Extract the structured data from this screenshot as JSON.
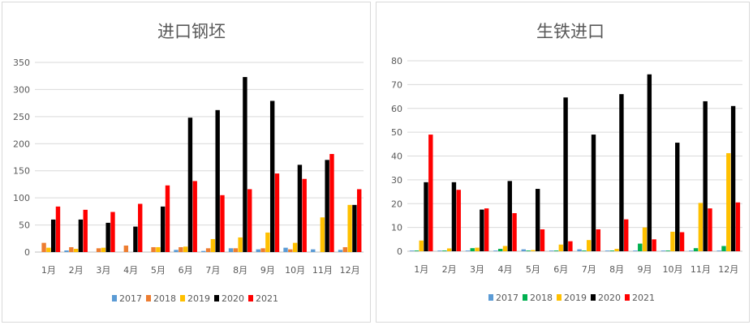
{
  "chart_data": [
    {
      "type": "bar",
      "title": "进口钢坯",
      "categories": [
        "1月",
        "2月",
        "3月",
        "4月",
        "5月",
        "6月",
        "7月",
        "8月",
        "9月",
        "10月",
        "11月",
        "12月"
      ],
      "ylim": [
        0,
        350
      ],
      "yticks": [
        "0",
        "50",
        "100",
        "150",
        "200",
        "250",
        "300",
        "350"
      ],
      "grid": true,
      "legend_position": "bottom",
      "series": [
        {
          "name": "2017",
          "color": "#5b9bd5",
          "values": [
            0,
            3,
            0,
            0,
            0,
            4,
            2,
            7,
            5,
            8,
            5,
            4
          ]
        },
        {
          "name": "2018",
          "color": "#ed7d31",
          "values": [
            17,
            9,
            7,
            12,
            9,
            9,
            7,
            7,
            7,
            5,
            0,
            9
          ]
        },
        {
          "name": "2019",
          "color": "#ffc000",
          "values": [
            8,
            6,
            8,
            0,
            9,
            10,
            24,
            27,
            36,
            17,
            64,
            87
          ]
        },
        {
          "name": "2020",
          "color": "#000000",
          "values": [
            60,
            60,
            54,
            47,
            84,
            248,
            262,
            323,
            279,
            161,
            170,
            87
          ]
        },
        {
          "name": "2021",
          "color": "#ff0000",
          "values": [
            84,
            78,
            74,
            89,
            123,
            131,
            105,
            116,
            145,
            135,
            181,
            116
          ]
        }
      ]
    },
    {
      "type": "bar",
      "title": "生铁进口",
      "categories": [
        "1月",
        "2月",
        "3月",
        "4月",
        "5月",
        "6月",
        "7月",
        "8月",
        "9月",
        "10月",
        "11月",
        "12月"
      ],
      "ylim": [
        0,
        80
      ],
      "yticks": [
        "0",
        "10",
        "20",
        "30",
        "40",
        "50",
        "60",
        "70",
        "80"
      ],
      "grid": true,
      "legend_position": "bottom",
      "series": [
        {
          "name": "2017",
          "color": "#5b9bd5",
          "values": [
            0.3,
            0.3,
            0.3,
            0.3,
            0.8,
            0.3,
            0.8,
            0.3,
            0.3,
            0.3,
            0.3,
            0.3
          ]
        },
        {
          "name": "2018",
          "color": "#00b050",
          "values": [
            0.3,
            0.3,
            1.3,
            1,
            0.3,
            0.3,
            0.3,
            0.3,
            3.2,
            0.3,
            1.3,
            2.2
          ]
        },
        {
          "name": "2019",
          "color": "#ffc000",
          "values": [
            4.5,
            1.2,
            1.5,
            2.2,
            0.5,
            2.8,
            4.7,
            1,
            10,
            8.2,
            20.3,
            41.2
          ]
        },
        {
          "name": "2020",
          "color": "#000000",
          "values": [
            29,
            29,
            17.5,
            29.5,
            26.2,
            64.6,
            49,
            66,
            74.3,
            45.6,
            63,
            61
          ]
        },
        {
          "name": "2021",
          "color": "#ff0000",
          "values": [
            49,
            25.8,
            18,
            16,
            9.2,
            4.2,
            9.2,
            13.4,
            5,
            8,
            18,
            20.5
          ]
        }
      ]
    }
  ]
}
